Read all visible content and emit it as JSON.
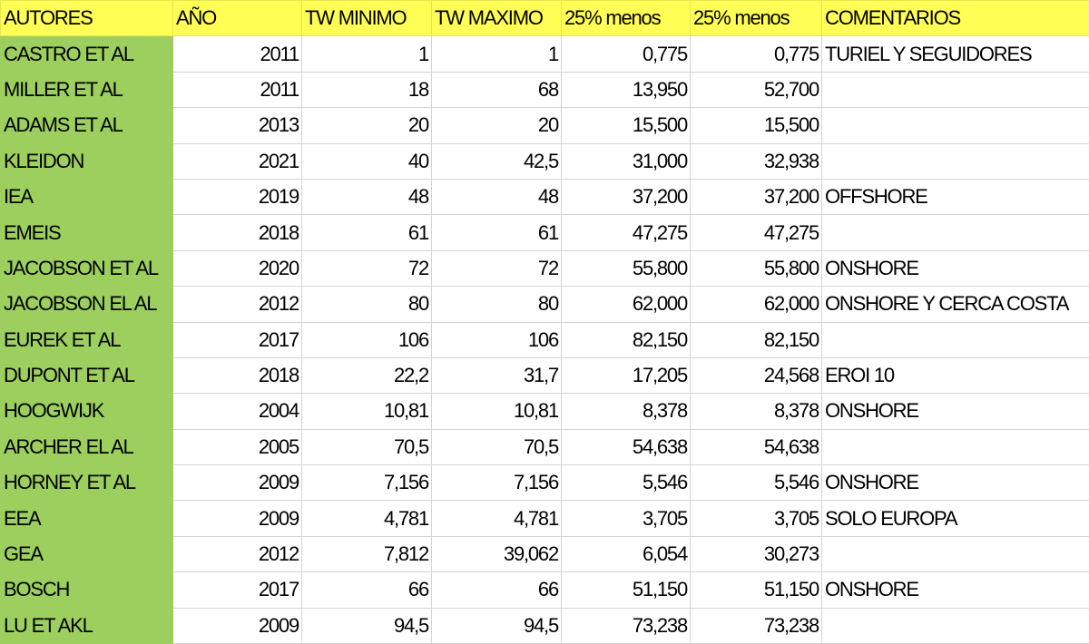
{
  "headers": {
    "autores": "AUTORES",
    "ano": "AÑO",
    "tw_minimo": "TW MINIMO",
    "tw_maximo": "TW MAXIMO",
    "menos1": "25% menos",
    "menos2": "25% menos",
    "comentarios": "COMENTARIOS"
  },
  "rows": [
    {
      "autor": "CASTRO ET AL",
      "ano": "2011",
      "min": "1",
      "max": "1",
      "p1": "0,775",
      "p2": "0,775",
      "com": "TURIEL Y SEGUIDORES"
    },
    {
      "autor": "MILLER ET AL",
      "ano": "2011",
      "min": "18",
      "max": "68",
      "p1": "13,950",
      "p2": "52,700",
      "com": ""
    },
    {
      "autor": "ADAMS ET AL",
      "ano": "2013",
      "min": "20",
      "max": "20",
      "p1": "15,500",
      "p2": "15,500",
      "com": ""
    },
    {
      "autor": "KLEIDON",
      "ano": "2021",
      "min": "40",
      "max": "42,5",
      "p1": "31,000",
      "p2": "32,938",
      "com": ""
    },
    {
      "autor": "IEA",
      "ano": "2019",
      "min": "48",
      "max": "48",
      "p1": "37,200",
      "p2": "37,200",
      "com": "OFFSHORE"
    },
    {
      "autor": "EMEIS",
      "ano": "2018",
      "min": "61",
      "max": "61",
      "p1": "47,275",
      "p2": "47,275",
      "com": ""
    },
    {
      "autor": "JACOBSON ET AL",
      "ano": "2020",
      "min": "72",
      "max": "72",
      "p1": "55,800",
      "p2": "55,800",
      "com": "ONSHORE"
    },
    {
      "autor": "JACOBSON EL AL",
      "ano": "2012",
      "min": "80",
      "max": "80",
      "p1": "62,000",
      "p2": "62,000",
      "com": "ONSHORE Y CERCA COSTA"
    },
    {
      "autor": "EUREK ET AL",
      "ano": "2017",
      "min": "106",
      "max": "106",
      "p1": "82,150",
      "p2": "82,150",
      "com": ""
    },
    {
      "autor": "DUPONT ET AL",
      "ano": "2018",
      "min": "22,2",
      "max": "31,7",
      "p1": "17,205",
      "p2": "24,568",
      "com": "EROI 10"
    },
    {
      "autor": "HOOGWIJK",
      "ano": "2004",
      "min": "10,81",
      "max": "10,81",
      "p1": "8,378",
      "p2": "8,378",
      "com": "ONSHORE"
    },
    {
      "autor": "ARCHER EL AL",
      "ano": "2005",
      "min": "70,5",
      "max": "70,5",
      "p1": "54,638",
      "p2": "54,638",
      "com": ""
    },
    {
      "autor": "HORNEY ET AL",
      "ano": "2009",
      "min": "7,156",
      "max": "7,156",
      "p1": "5,546",
      "p2": "5,546",
      "com": "ONSHORE"
    },
    {
      "autor": "EEA",
      "ano": "2009",
      "min": "4,781",
      "max": "4,781",
      "p1": "3,705",
      "p2": "3,705",
      "com": "SOLO EUROPA"
    },
    {
      "autor": "GEA",
      "ano": "2012",
      "min": "7,812",
      "max": "39,062",
      "p1": "6,054",
      "p2": "30,273",
      "com": ""
    },
    {
      "autor": "BOSCH",
      "ano": "2017",
      "min": "66",
      "max": "66",
      "p1": "51,150",
      "p2": "51,150",
      "com": "ONSHORE"
    },
    {
      "autor": "LU ET AKL",
      "ano": "2009",
      "min": "94,5",
      "max": "94,5",
      "p1": "73,238",
      "p2": "73,238",
      "com": ""
    }
  ],
  "colors": {
    "header_bg": "#ffff55",
    "author_bg": "#9ccf5e",
    "grid": "#d4d4d4"
  }
}
